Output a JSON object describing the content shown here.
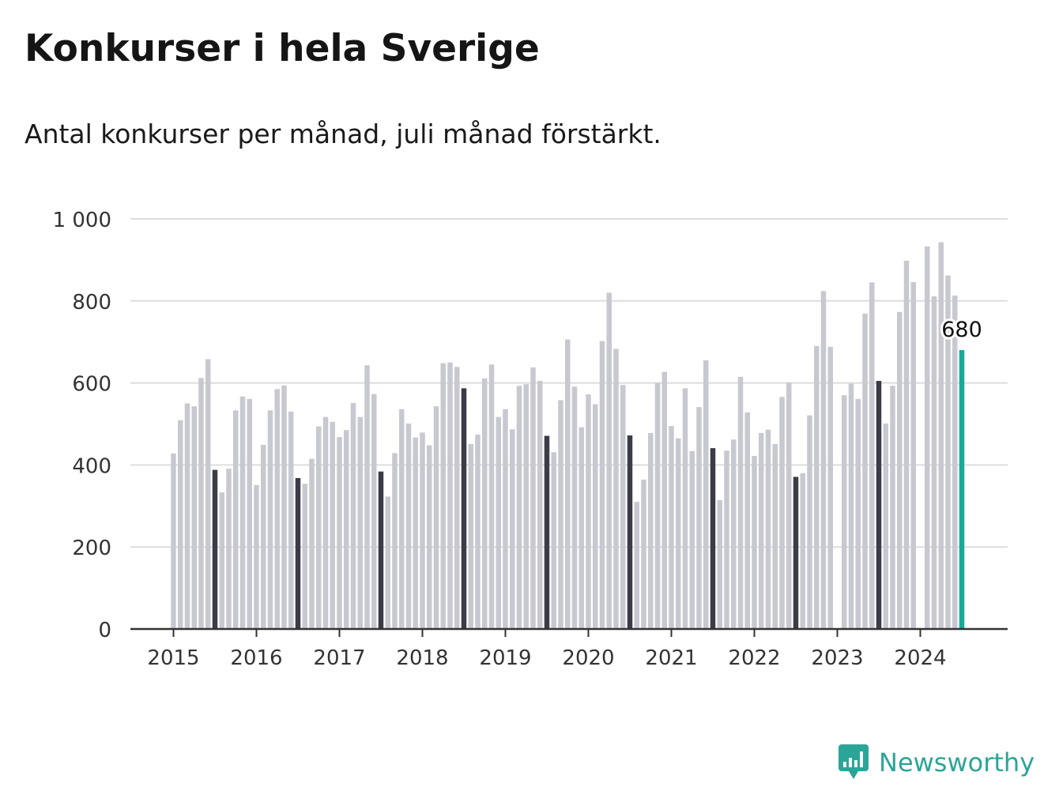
{
  "chart_data": {
    "type": "bar",
    "title": "Konkurser i hela Sverige",
    "subtitle": "Antal konkurser per månad, juli månad förstärkt.",
    "xlabel": "",
    "ylabel": "",
    "ylim": [
      0,
      1000
    ],
    "yticks": [
      0,
      200,
      400,
      600,
      800,
      1000
    ],
    "ytick_labels": [
      "0",
      "200",
      "400",
      "600",
      "800",
      "1 000"
    ],
    "xtick_labels": [
      "2015",
      "2016",
      "2017",
      "2018",
      "2019",
      "2020",
      "2021",
      "2022",
      "2023",
      "2024"
    ],
    "x_start": "2015-01",
    "grid": true,
    "values": [
      428,
      509,
      550,
      543,
      612,
      658,
      388,
      333,
      391,
      533,
      567,
      561,
      351,
      449,
      533,
      585,
      594,
      530,
      368,
      354,
      415,
      494,
      517,
      505,
      468,
      485,
      551,
      517,
      643,
      573,
      384,
      323,
      429,
      536,
      501,
      467,
      479,
      448,
      543,
      648,
      650,
      639,
      587,
      451,
      474,
      611,
      645,
      517,
      536,
      487,
      593,
      597,
      638,
      605,
      471,
      431,
      558,
      706,
      591,
      492,
      572,
      548,
      702,
      820,
      683,
      595,
      472,
      310,
      364,
      478,
      600,
      627,
      495,
      465,
      587,
      434,
      541,
      655,
      441,
      314,
      435,
      462,
      615,
      528,
      422,
      478,
      486,
      451,
      566,
      601,
      371,
      380,
      521,
      690,
      824,
      688,
      null,
      570,
      598,
      561,
      769,
      845,
      605,
      501,
      593,
      773,
      898,
      846,
      null,
      933,
      811,
      943,
      862,
      813,
      680
    ],
    "highlight": "juli",
    "annotation": "680",
    "colors": {
      "bar": "#c8c8d1",
      "july": "#3c3c48",
      "latest": "#19a99a",
      "grid": "#dddddd",
      "axis": "#333333"
    }
  },
  "brand": {
    "name": "Newsworthy",
    "color": "#2ba598"
  }
}
